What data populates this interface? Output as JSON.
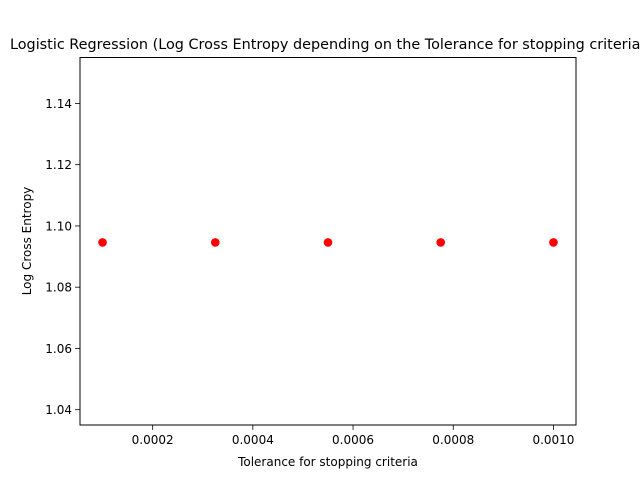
{
  "chart_data": {
    "type": "scatter",
    "title": "Logistic Regression (Log Cross Entropy depending on the Tolerance for stopping criteria)",
    "xlabel": "Tolerance for stopping criteria",
    "ylabel": "Log Cross Entropy",
    "xlim": [
      5.5e-05,
      0.001045
    ],
    "ylim": [
      1.035,
      1.155
    ],
    "xticks": [
      0.0002,
      0.0004,
      0.0006,
      0.0008,
      0.001
    ],
    "xtick_labels": [
      "0.0002",
      "0.0004",
      "0.0006",
      "0.0008",
      "0.0010"
    ],
    "yticks": [
      1.04,
      1.06,
      1.08,
      1.1,
      1.12,
      1.14
    ],
    "ytick_labels": [
      "1.04",
      "1.06",
      "1.08",
      "1.10",
      "1.12",
      "1.14"
    ],
    "grid": false,
    "series": [
      {
        "color": "#ff0000",
        "marker": "circle",
        "x": [
          0.0001,
          0.000325,
          0.00055,
          0.000775,
          0.001
        ],
        "y": [
          1.0946,
          1.0946,
          1.0946,
          1.0946,
          1.0946
        ]
      }
    ]
  }
}
